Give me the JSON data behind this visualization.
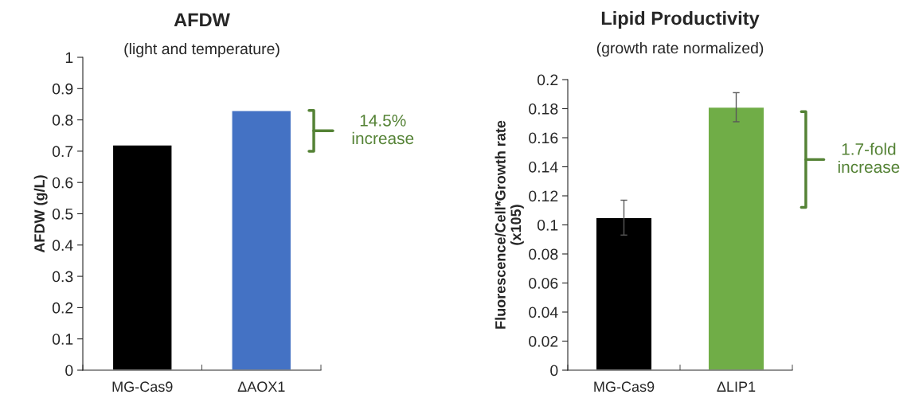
{
  "chart_data": [
    {
      "type": "bar",
      "title": "AFDW",
      "subtitle": "(light and temperature)",
      "ylabel": "AFDW (g/L)",
      "categories": [
        "MG-Cas9",
        "ΔAOX1"
      ],
      "values": [
        0.72,
        0.83
      ],
      "colors": [
        "#000000",
        "#4472c4"
      ],
      "ylim": [
        0,
        1
      ],
      "yticks": [
        0,
        0.1,
        0.2,
        0.3,
        0.4,
        0.5,
        0.6,
        0.7,
        0.8,
        0.9,
        1
      ],
      "grid": false,
      "annotations": [
        "14.5%\nincrease"
      ]
    },
    {
      "type": "bar",
      "title": "Lipid Productivity",
      "subtitle": "(growth rate normalized)",
      "ylabel": "Fluorescence/Cell*Growth rate\n(x105)",
      "categories": [
        "MG-Cas9",
        "ΔLIP1"
      ],
      "values": [
        0.105,
        0.181
      ],
      "errors": [
        0.012,
        0.01
      ],
      "colors": [
        "#000000",
        "#70ad47"
      ],
      "ylim": [
        0,
        0.2
      ],
      "yticks": [
        0,
        0.02,
        0.04,
        0.06,
        0.08,
        0.1,
        0.12,
        0.14,
        0.16,
        0.18,
        0.2
      ],
      "grid": false,
      "annotations": [
        "1.7-fold\nincrease"
      ]
    }
  ]
}
